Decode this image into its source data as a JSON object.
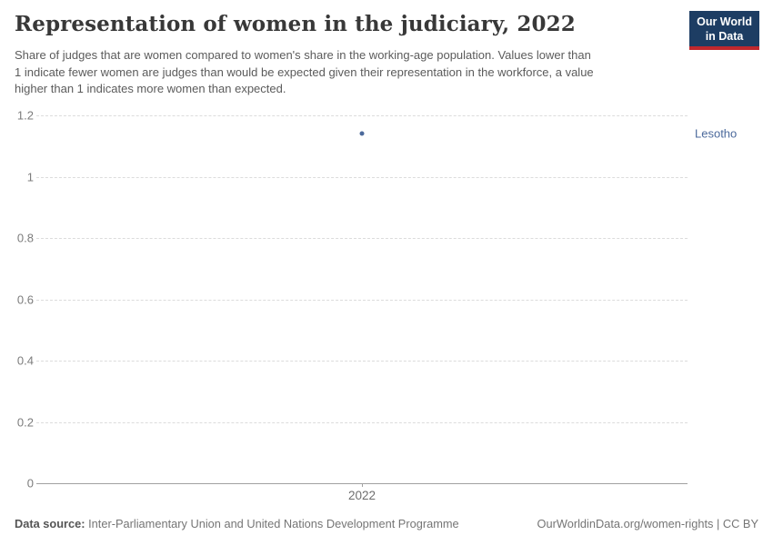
{
  "header": {
    "title": "Representation of women in the judiciary, 2022",
    "subtitle": "Share of judges that are women compared to women's share in the working-age population. Values lower than\n1 indicate fewer women are judges than would be expected given their representation in the workforce, a value\nhigher than 1 indicates more women than expected."
  },
  "logo": {
    "line1": "Our World",
    "line2": "in Data",
    "bg_color": "#1d3d63",
    "accent_color": "#c0282d"
  },
  "chart_data": {
    "type": "scatter",
    "title": "Representation of women in the judiciary, 2022",
    "xlabel": "",
    "ylabel": "",
    "xtick_labels": [
      "2022"
    ],
    "series": [
      {
        "name": "Lesotho",
        "x": 2022,
        "y": 1.14,
        "point_color": "#4c6a9c",
        "label_color": "#4c6a9c"
      }
    ],
    "ylim": [
      0,
      1.2
    ],
    "yticks": [
      0,
      0.2,
      0.4,
      0.6,
      0.8,
      1,
      1.2
    ],
    "grid": true,
    "gridline_style": "dashed",
    "legend_position": "entity-label-right"
  },
  "footer": {
    "source_label": "Data source:",
    "source_value": "Inter-Parliamentary Union and United Nations Development Programme",
    "rights_link": "OurWorldinData.org/women-rights",
    "rights_suffix": " | CC BY"
  },
  "colors": {
    "title": "#383838",
    "subtitle": "#5b5b5b",
    "axis_tick_label": "#7c7c7c",
    "gridline": "#dcdcdc",
    "axis_line": "#a1a1a1",
    "point": "#4c6a9c",
    "entity_label": "#4c6a9c",
    "footer_text": "#757575"
  }
}
